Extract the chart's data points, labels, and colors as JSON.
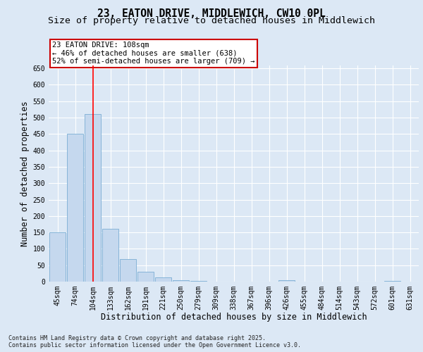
{
  "title_line1": "23, EATON DRIVE, MIDDLEWICH, CW10 0PL",
  "title_line2": "Size of property relative to detached houses in Middlewich",
  "xlabel": "Distribution of detached houses by size in Middlewich",
  "ylabel": "Number of detached properties",
  "categories": [
    "45sqm",
    "74sqm",
    "104sqm",
    "133sqm",
    "162sqm",
    "191sqm",
    "221sqm",
    "250sqm",
    "279sqm",
    "309sqm",
    "338sqm",
    "367sqm",
    "396sqm",
    "426sqm",
    "455sqm",
    "484sqm",
    "514sqm",
    "543sqm",
    "572sqm",
    "601sqm",
    "631sqm"
  ],
  "values": [
    150,
    450,
    510,
    160,
    68,
    30,
    12,
    5,
    3,
    0,
    0,
    0,
    0,
    4,
    0,
    0,
    0,
    0,
    0,
    3,
    0
  ],
  "bar_color": "#c5d8ee",
  "bar_edge_color": "#7aadd4",
  "red_line_index": 2,
  "annotation_text": "23 EATON DRIVE: 108sqm\n← 46% of detached houses are smaller (638)\n52% of semi-detached houses are larger (709) →",
  "annotation_box_color": "#ffffff",
  "annotation_box_edge_color": "#cc0000",
  "ylim": [
    0,
    660
  ],
  "yticks": [
    0,
    50,
    100,
    150,
    200,
    250,
    300,
    350,
    400,
    450,
    500,
    550,
    600,
    650
  ],
  "fig_bg_color": "#dce8f5",
  "plot_bg_color": "#dce8f5",
  "grid_color": "#ffffff",
  "footer_text": "Contains HM Land Registry data © Crown copyright and database right 2025.\nContains public sector information licensed under the Open Government Licence v3.0.",
  "title_fontsize": 10.5,
  "subtitle_fontsize": 9.5,
  "axis_label_fontsize": 8.5,
  "tick_fontsize": 7,
  "annotation_fontsize": 7.5,
  "footer_fontsize": 6
}
